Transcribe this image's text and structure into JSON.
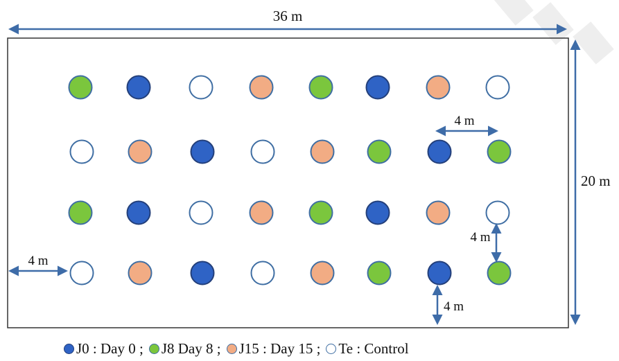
{
  "field": {
    "width_label": "36 m",
    "height_label": "20 m"
  },
  "spacing_labels": {
    "top_pair": "4 m",
    "left_margin": "4 m",
    "vertical_pair": "4 m",
    "bottom_margin": "4 m"
  },
  "treatments": {
    "J0": {
      "fill": "#2f63c5",
      "stroke": "#233f7a"
    },
    "J8": {
      "fill": "#7bc63d",
      "stroke": "#3f6ea3"
    },
    "J15": {
      "fill": "#f2ac84",
      "stroke": "#3f6ea3"
    },
    "Te": {
      "fill": "#ffffff",
      "stroke": "#3f6ea3"
    }
  },
  "grid": [
    [
      "J8",
      "J0",
      "Te",
      "J15",
      "J8",
      "J0",
      "J15",
      "Te"
    ],
    [
      "Te",
      "J15",
      "J0",
      "Te",
      "J15",
      "J8",
      "J0",
      "J8"
    ],
    [
      "J8",
      "J0",
      "Te",
      "J15",
      "J8",
      "J0",
      "J15",
      "Te"
    ],
    [
      "Te",
      "J15",
      "J0",
      "Te",
      "J15",
      "J8",
      "J0",
      "J8"
    ]
  ],
  "legend": [
    {
      "key": "J0",
      "text": "J0 : Day 0 ;",
      "color": "#2f63c5"
    },
    {
      "key": "J8",
      "text": "J8 Day 8 ;",
      "color": "#7bc63d"
    },
    {
      "key": "J15",
      "text": "J15 : Day 15 ;",
      "color": "#f2ac84"
    },
    {
      "key": "Te",
      "text": "Te : Control",
      "color": "#ffffff"
    }
  ]
}
